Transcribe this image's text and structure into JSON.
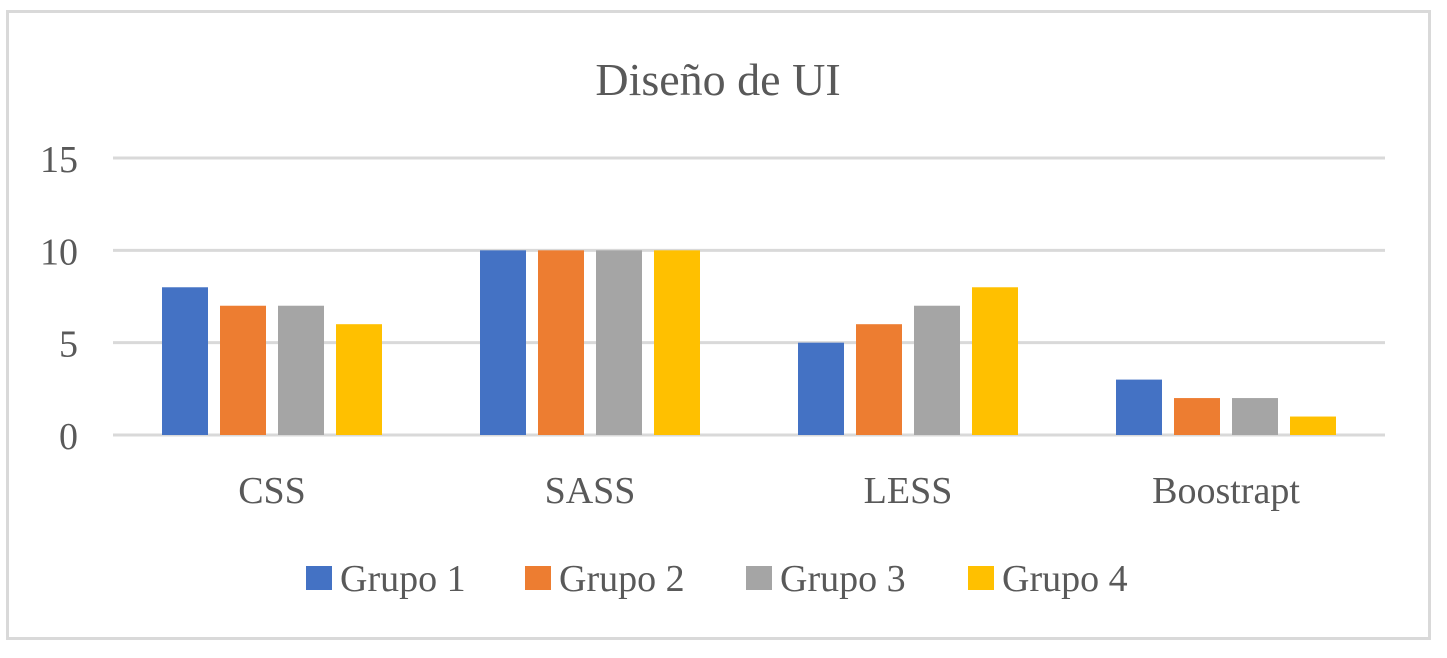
{
  "chart_data": {
    "type": "bar",
    "title": "Diseño de UI",
    "xlabel": "",
    "ylabel": "",
    "categories": [
      "CSS",
      "SASS",
      "LESS",
      "Boostrapt"
    ],
    "series": [
      {
        "name": "Grupo 1",
        "color": "#4472c4",
        "values": [
          8,
          10,
          5,
          3
        ]
      },
      {
        "name": "Grupo 2",
        "color": "#ed7d31",
        "values": [
          7,
          10,
          6,
          2
        ]
      },
      {
        "name": "Grupo 3",
        "color": "#a5a5a5",
        "values": [
          7,
          10,
          7,
          2
        ]
      },
      {
        "name": "Grupo 4",
        "color": "#ffc000",
        "values": [
          6,
          10,
          8,
          1
        ]
      }
    ],
    "ylim": [
      0,
      15
    ],
    "yticks": [
      "0",
      "5",
      "10",
      "15"
    ],
    "grid": true,
    "legend_position": "bottom"
  }
}
